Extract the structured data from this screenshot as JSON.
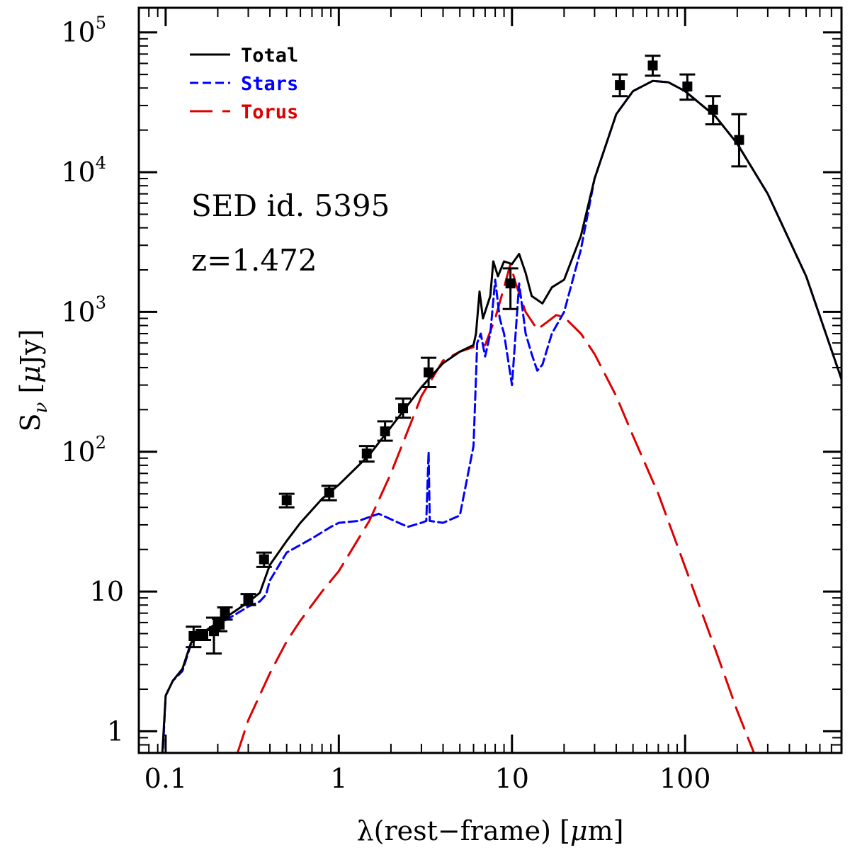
{
  "chart_data": {
    "type": "line",
    "xlabel_prefix": "λ(rest−frame) [",
    "xlabel_mu": "μ",
    "xlabel_suffix": "m]",
    "ylabel_main": "S",
    "ylabel_sub": "ν",
    "ylabel_units_prefix": "[",
    "ylabel_units_mu": "μ",
    "ylabel_units_suffix": "Jy]",
    "xscale": "log",
    "yscale": "log",
    "xlim": [
      0.07,
      800
    ],
    "ylim": [
      0.7,
      150000
    ],
    "x_tick_labels": [
      {
        "value": 0.1,
        "text": "0.1"
      },
      {
        "value": 1,
        "text": "1"
      },
      {
        "value": 10,
        "text": "10"
      },
      {
        "value": 100,
        "text": "100"
      }
    ],
    "y_tick_labels": [
      {
        "value": 1,
        "base": "1",
        "exp": ""
      },
      {
        "value": 10,
        "base": "10",
        "exp": ""
      },
      {
        "value": 100,
        "base": "10",
        "exp": "2"
      },
      {
        "value": 1000,
        "base": "10",
        "exp": "3"
      },
      {
        "value": 10000,
        "base": "10",
        "exp": "4"
      },
      {
        "value": 100000,
        "base": "10",
        "exp": "5"
      }
    ],
    "annotations": [
      "SED id. 5395",
      "z=1.472"
    ],
    "legend_position": "top-left",
    "series": [
      {
        "name": "Total",
        "color": "#000000",
        "style": "solid",
        "points": [
          [
            0.095,
            0.6
          ],
          [
            0.1,
            1.8
          ],
          [
            0.11,
            2.3
          ],
          [
            0.125,
            2.8
          ],
          [
            0.14,
            4.3
          ],
          [
            0.16,
            5.0
          ],
          [
            0.2,
            6.0
          ],
          [
            0.25,
            7.2
          ],
          [
            0.3,
            8.4
          ],
          [
            0.35,
            9.8
          ],
          [
            0.4,
            15.5
          ],
          [
            0.5,
            23
          ],
          [
            0.6,
            31
          ],
          [
            0.8,
            46
          ],
          [
            1.0,
            58
          ],
          [
            1.5,
            95
          ],
          [
            2.0,
            150
          ],
          [
            3.0,
            290
          ],
          [
            4.0,
            430
          ],
          [
            5.0,
            520
          ],
          [
            6.0,
            580
          ],
          [
            6.2,
            700
          ],
          [
            6.5,
            1400
          ],
          [
            6.8,
            900
          ],
          [
            7.5,
            1300
          ],
          [
            7.8,
            2300
          ],
          [
            8.3,
            1800
          ],
          [
            9.0,
            2300
          ],
          [
            10.0,
            2200
          ],
          [
            11.0,
            2600
          ],
          [
            12.0,
            1900
          ],
          [
            13.0,
            1300
          ],
          [
            15.0,
            1150
          ],
          [
            17.0,
            1500
          ],
          [
            20.0,
            1700
          ],
          [
            25.0,
            3500
          ],
          [
            30.0,
            9000
          ],
          [
            40.0,
            26000
          ],
          [
            50.0,
            38000
          ],
          [
            65.0,
            45000
          ],
          [
            80.0,
            44000
          ],
          [
            100.0,
            38000
          ],
          [
            150.0,
            25000
          ],
          [
            200.0,
            16000
          ],
          [
            300.0,
            7000
          ],
          [
            500.0,
            1800
          ],
          [
            800.0,
            330
          ]
        ]
      },
      {
        "name": "Stars",
        "color": "#0000ff",
        "style": "dashdot",
        "points": [
          [
            0.095,
            0.5
          ],
          [
            0.1,
            1.8
          ],
          [
            0.11,
            2.3
          ],
          [
            0.125,
            2.7
          ],
          [
            0.14,
            4.2
          ],
          [
            0.16,
            5.0
          ],
          [
            0.2,
            5.8
          ],
          [
            0.25,
            6.8
          ],
          [
            0.3,
            7.8
          ],
          [
            0.35,
            8.5
          ],
          [
            0.38,
            9.5
          ],
          [
            0.4,
            12
          ],
          [
            0.5,
            19
          ],
          [
            0.7,
            24
          ],
          [
            0.9,
            29
          ],
          [
            1.0,
            31
          ],
          [
            1.3,
            32
          ],
          [
            1.7,
            36
          ],
          [
            2.5,
            29
          ],
          [
            3.0,
            31
          ],
          [
            3.2,
            32
          ],
          [
            3.3,
            100
          ],
          [
            3.35,
            32
          ],
          [
            4.0,
            31
          ],
          [
            5.0,
            35
          ],
          [
            6.0,
            110
          ],
          [
            6.3,
            600
          ],
          [
            6.6,
            700
          ],
          [
            7.0,
            480
          ],
          [
            7.5,
            700
          ],
          [
            8.0,
            1700
          ],
          [
            8.5,
            900
          ],
          [
            9.0,
            700
          ],
          [
            10.0,
            300
          ],
          [
            11.0,
            1600
          ],
          [
            12.0,
            700
          ],
          [
            13.0,
            500
          ],
          [
            14.0,
            380
          ],
          [
            15.0,
            420
          ],
          [
            17.0,
            700
          ],
          [
            20.0,
            1000
          ],
          [
            25.0,
            2800
          ],
          [
            30.0,
            9000
          ],
          [
            40.0,
            26000
          ],
          [
            50.0,
            38000
          ],
          [
            65.0,
            45000
          ],
          [
            80.0,
            44000
          ],
          [
            100.0,
            38000
          ],
          [
            150.0,
            25000
          ],
          [
            200.0,
            16000
          ],
          [
            300.0,
            7000
          ],
          [
            500.0,
            1800
          ],
          [
            800.0,
            330
          ]
        ]
      },
      {
        "name": "Torus",
        "color": "#dd0000",
        "style": "dashed",
        "points": [
          [
            0.26,
            0.7
          ],
          [
            0.3,
            1.2
          ],
          [
            0.4,
            2.6
          ],
          [
            0.5,
            4.4
          ],
          [
            0.6,
            6.2
          ],
          [
            0.8,
            10
          ],
          [
            1.0,
            14
          ],
          [
            1.5,
            32
          ],
          [
            2.0,
            70
          ],
          [
            3.0,
            250
          ],
          [
            4.0,
            450
          ],
          [
            5.0,
            520
          ],
          [
            6.0,
            560
          ],
          [
            7.0,
            580
          ],
          [
            8.0,
            900
          ],
          [
            9.0,
            1500
          ],
          [
            9.8,
            2200
          ],
          [
            10.5,
            1600
          ],
          [
            12.0,
            1000
          ],
          [
            14.0,
            750
          ],
          [
            16.0,
            850
          ],
          [
            18.0,
            950
          ],
          [
            20.0,
            920
          ],
          [
            25.0,
            700
          ],
          [
            30.0,
            500
          ],
          [
            40.0,
            250
          ],
          [
            50.0,
            130
          ],
          [
            70.0,
            50
          ],
          [
            100.0,
            15
          ],
          [
            150.0,
            3.8
          ],
          [
            200.0,
            1.4
          ],
          [
            250.0,
            0.7
          ]
        ]
      }
    ],
    "observed_points": [
      {
        "x": 0.145,
        "y": 4.8,
        "lo": 4.0,
        "hi": 5.6
      },
      {
        "x": 0.165,
        "y": 4.9,
        "lo": 4.5,
        "hi": 5.3
      },
      {
        "x": 0.19,
        "y": 5.2,
        "lo": 3.6,
        "hi": 6.5
      },
      {
        "x": 0.205,
        "y": 5.8,
        "lo": 5.2,
        "hi": 6.4
      },
      {
        "x": 0.22,
        "y": 7.0,
        "lo": 6.3,
        "hi": 7.7
      },
      {
        "x": 0.3,
        "y": 8.8,
        "lo": 8.0,
        "hi": 9.6
      },
      {
        "x": 0.37,
        "y": 17,
        "lo": 15,
        "hi": 19
      },
      {
        "x": 0.5,
        "y": 45,
        "lo": 40,
        "hi": 50
      },
      {
        "x": 0.88,
        "y": 51,
        "lo": 45,
        "hi": 57
      },
      {
        "x": 1.45,
        "y": 97,
        "lo": 85,
        "hi": 110
      },
      {
        "x": 1.85,
        "y": 140,
        "lo": 120,
        "hi": 165
      },
      {
        "x": 2.35,
        "y": 205,
        "lo": 175,
        "hi": 240
      },
      {
        "x": 3.3,
        "y": 370,
        "lo": 290,
        "hi": 470
      },
      {
        "x": 9.8,
        "y": 1600,
        "lo": 1050,
        "hi": 2050
      },
      {
        "x": 42.0,
        "y": 42000,
        "lo": 35000,
        "hi": 50000
      },
      {
        "x": 65.0,
        "y": 58000,
        "lo": 49000,
        "hi": 68000
      },
      {
        "x": 103.0,
        "y": 41000,
        "lo": 33000,
        "hi": 50000
      },
      {
        "x": 145.0,
        "y": 28000,
        "lo": 22000,
        "hi": 35000
      },
      {
        "x": 205.0,
        "y": 17000,
        "lo": 11000,
        "hi": 26000
      }
    ]
  }
}
